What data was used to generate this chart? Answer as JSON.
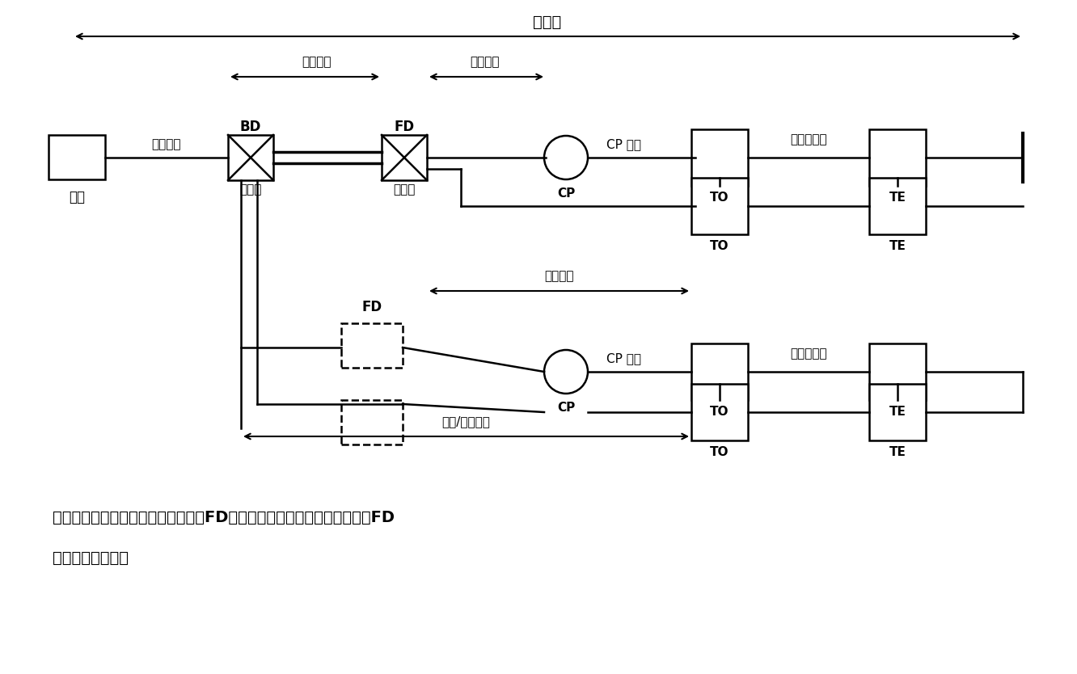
{
  "caption_line1": "光纤信道构成（光缆经过楼层配线间FD光跳线连接或光缆经过楼层配线间FD",
  "caption_line2": "直接连至设备间）",
  "guangxindao_label": "光信道",
  "zhuganguanglan_label": "主干光缆",
  "shuipingguanglan_label": "水平光缆",
  "shuipingguanglan2_label": "水平光缆",
  "zhuganshuiping_label": "主干/水平光缆",
  "shebei_label": "设备",
  "shebei_guanglan_label": "设备光缆",
  "BD_label": "BD",
  "FD1_label": "FD",
  "FD2_label": "FD",
  "guangtiaoxian1_label": "光跳线",
  "guangtiaoxian2_label": "光跳线",
  "CP_label": "CP",
  "CP_guanglan1": "CP 光缆",
  "CP_guanglan2": "CP 光缆",
  "gongzuoqu_guanglan1": "工作区光缆",
  "gongzuoqu_guanglan2": "工作区光缆",
  "TO": "TO",
  "TE": "TE"
}
